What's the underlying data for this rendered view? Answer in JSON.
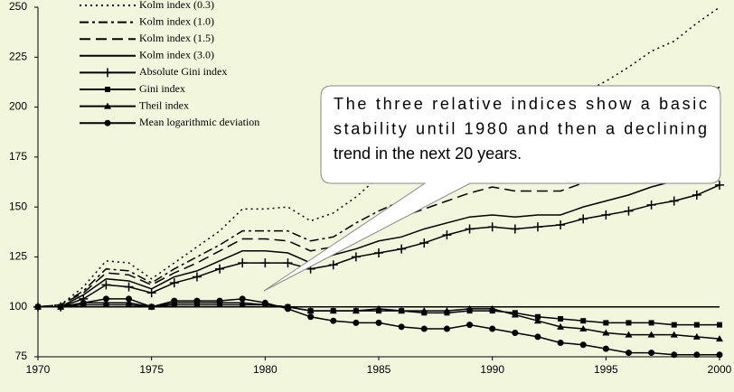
{
  "chart_data": {
    "type": "line",
    "x": [
      1970,
      1971,
      1972,
      1973,
      1974,
      1975,
      1976,
      1977,
      1978,
      1979,
      1980,
      1981,
      1982,
      1983,
      1984,
      1985,
      1986,
      1987,
      1988,
      1989,
      1990,
      1991,
      1992,
      1993,
      1994,
      1995,
      1996,
      1997,
      1998,
      1999,
      2000
    ],
    "xlim": [
      1970,
      2000
    ],
    "xticks": [
      1970,
      1975,
      1980,
      1985,
      1990,
      1995,
      2000
    ],
    "ylim": [
      75,
      250
    ],
    "yticks": [
      75,
      100,
      125,
      150,
      175,
      200,
      225,
      250
    ],
    "reference_line": 100,
    "series": [
      {
        "name": "Kolm index (0.3)",
        "color": "#000000",
        "dash": "2,4",
        "marker": "none",
        "values": [
          100,
          101,
          110,
          123,
          122,
          114,
          122,
          130,
          138,
          149,
          149,
          150,
          143,
          147,
          155,
          165,
          172,
          178,
          185,
          190,
          195,
          198,
          200,
          203,
          207,
          213,
          220,
          228,
          233,
          242,
          250
        ]
      },
      {
        "name": "Kolm index (1.0)",
        "color": "#000000",
        "dash": "10,4,3,4",
        "marker": "none",
        "values": [
          100,
          101,
          108,
          119,
          118,
          112,
          119,
          125,
          131,
          138,
          138,
          138,
          133,
          135,
          142,
          148,
          153,
          157,
          162,
          166,
          170,
          173,
          175,
          178,
          182,
          186,
          190,
          195,
          200,
          205,
          210
        ]
      },
      {
        "name": "Kolm index (1.5)",
        "color": "#000000",
        "dash": "12,6",
        "marker": "none",
        "values": [
          100,
          101,
          107,
          117,
          116,
          111,
          117,
          122,
          128,
          134,
          134,
          133,
          128,
          130,
          135,
          141,
          145,
          149,
          153,
          157,
          160,
          158,
          158,
          158,
          162,
          166,
          170,
          175,
          180,
          185,
          190
        ]
      },
      {
        "name": "Kolm index (3.0)",
        "color": "#000000",
        "dash": "none",
        "marker": "none",
        "values": [
          100,
          100,
          106,
          114,
          113,
          109,
          115,
          118,
          123,
          128,
          128,
          127,
          122,
          126,
          129,
          133,
          135,
          139,
          142,
          145,
          146,
          145,
          146,
          146,
          150,
          153,
          156,
          160,
          163,
          166,
          168
        ]
      },
      {
        "name": "Absolute Gini index",
        "color": "#000000",
        "dash": "none",
        "marker": "plus",
        "values": [
          100,
          100,
          104,
          111,
          110,
          107,
          112,
          115,
          119,
          122,
          122,
          122,
          119,
          121,
          125,
          127,
          129,
          132,
          136,
          139,
          140,
          139,
          140,
          141,
          144,
          146,
          148,
          151,
          153,
          156,
          161
        ]
      },
      {
        "name": "Gini index",
        "color": "#000000",
        "dash": "none",
        "marker": "square",
        "values": [
          100,
          100,
          101,
          101,
          101,
          100,
          101,
          101,
          101,
          101,
          101,
          100,
          98,
          98,
          98,
          98,
          98,
          97,
          97,
          98,
          98,
          97,
          95,
          94,
          93,
          92,
          92,
          92,
          91,
          91,
          91
        ]
      },
      {
        "name": "Theil index",
        "color": "#000000",
        "dash": "none",
        "marker": "triangle",
        "values": [
          100,
          100,
          102,
          102,
          102,
          100,
          102,
          102,
          102,
          102,
          101,
          100,
          98,
          98,
          98,
          99,
          98,
          98,
          98,
          99,
          99,
          96,
          93,
          90,
          89,
          87,
          86,
          86,
          86,
          85,
          84
        ]
      },
      {
        "name": "Mean logarithmic deviation",
        "color": "#000000",
        "dash": "none",
        "marker": "circle",
        "values": [
          100,
          100,
          102,
          104,
          104,
          100,
          103,
          103,
          103,
          104,
          102,
          99,
          95,
          93,
          92,
          92,
          90,
          89,
          89,
          91,
          89,
          87,
          85,
          82,
          81,
          79,
          77,
          77,
          76,
          76,
          76
        ]
      }
    ],
    "annotation": [
      "The three relative indices show a basic",
      "stability until 1980 and then a declining",
      "trend in the next 20 years."
    ]
  }
}
